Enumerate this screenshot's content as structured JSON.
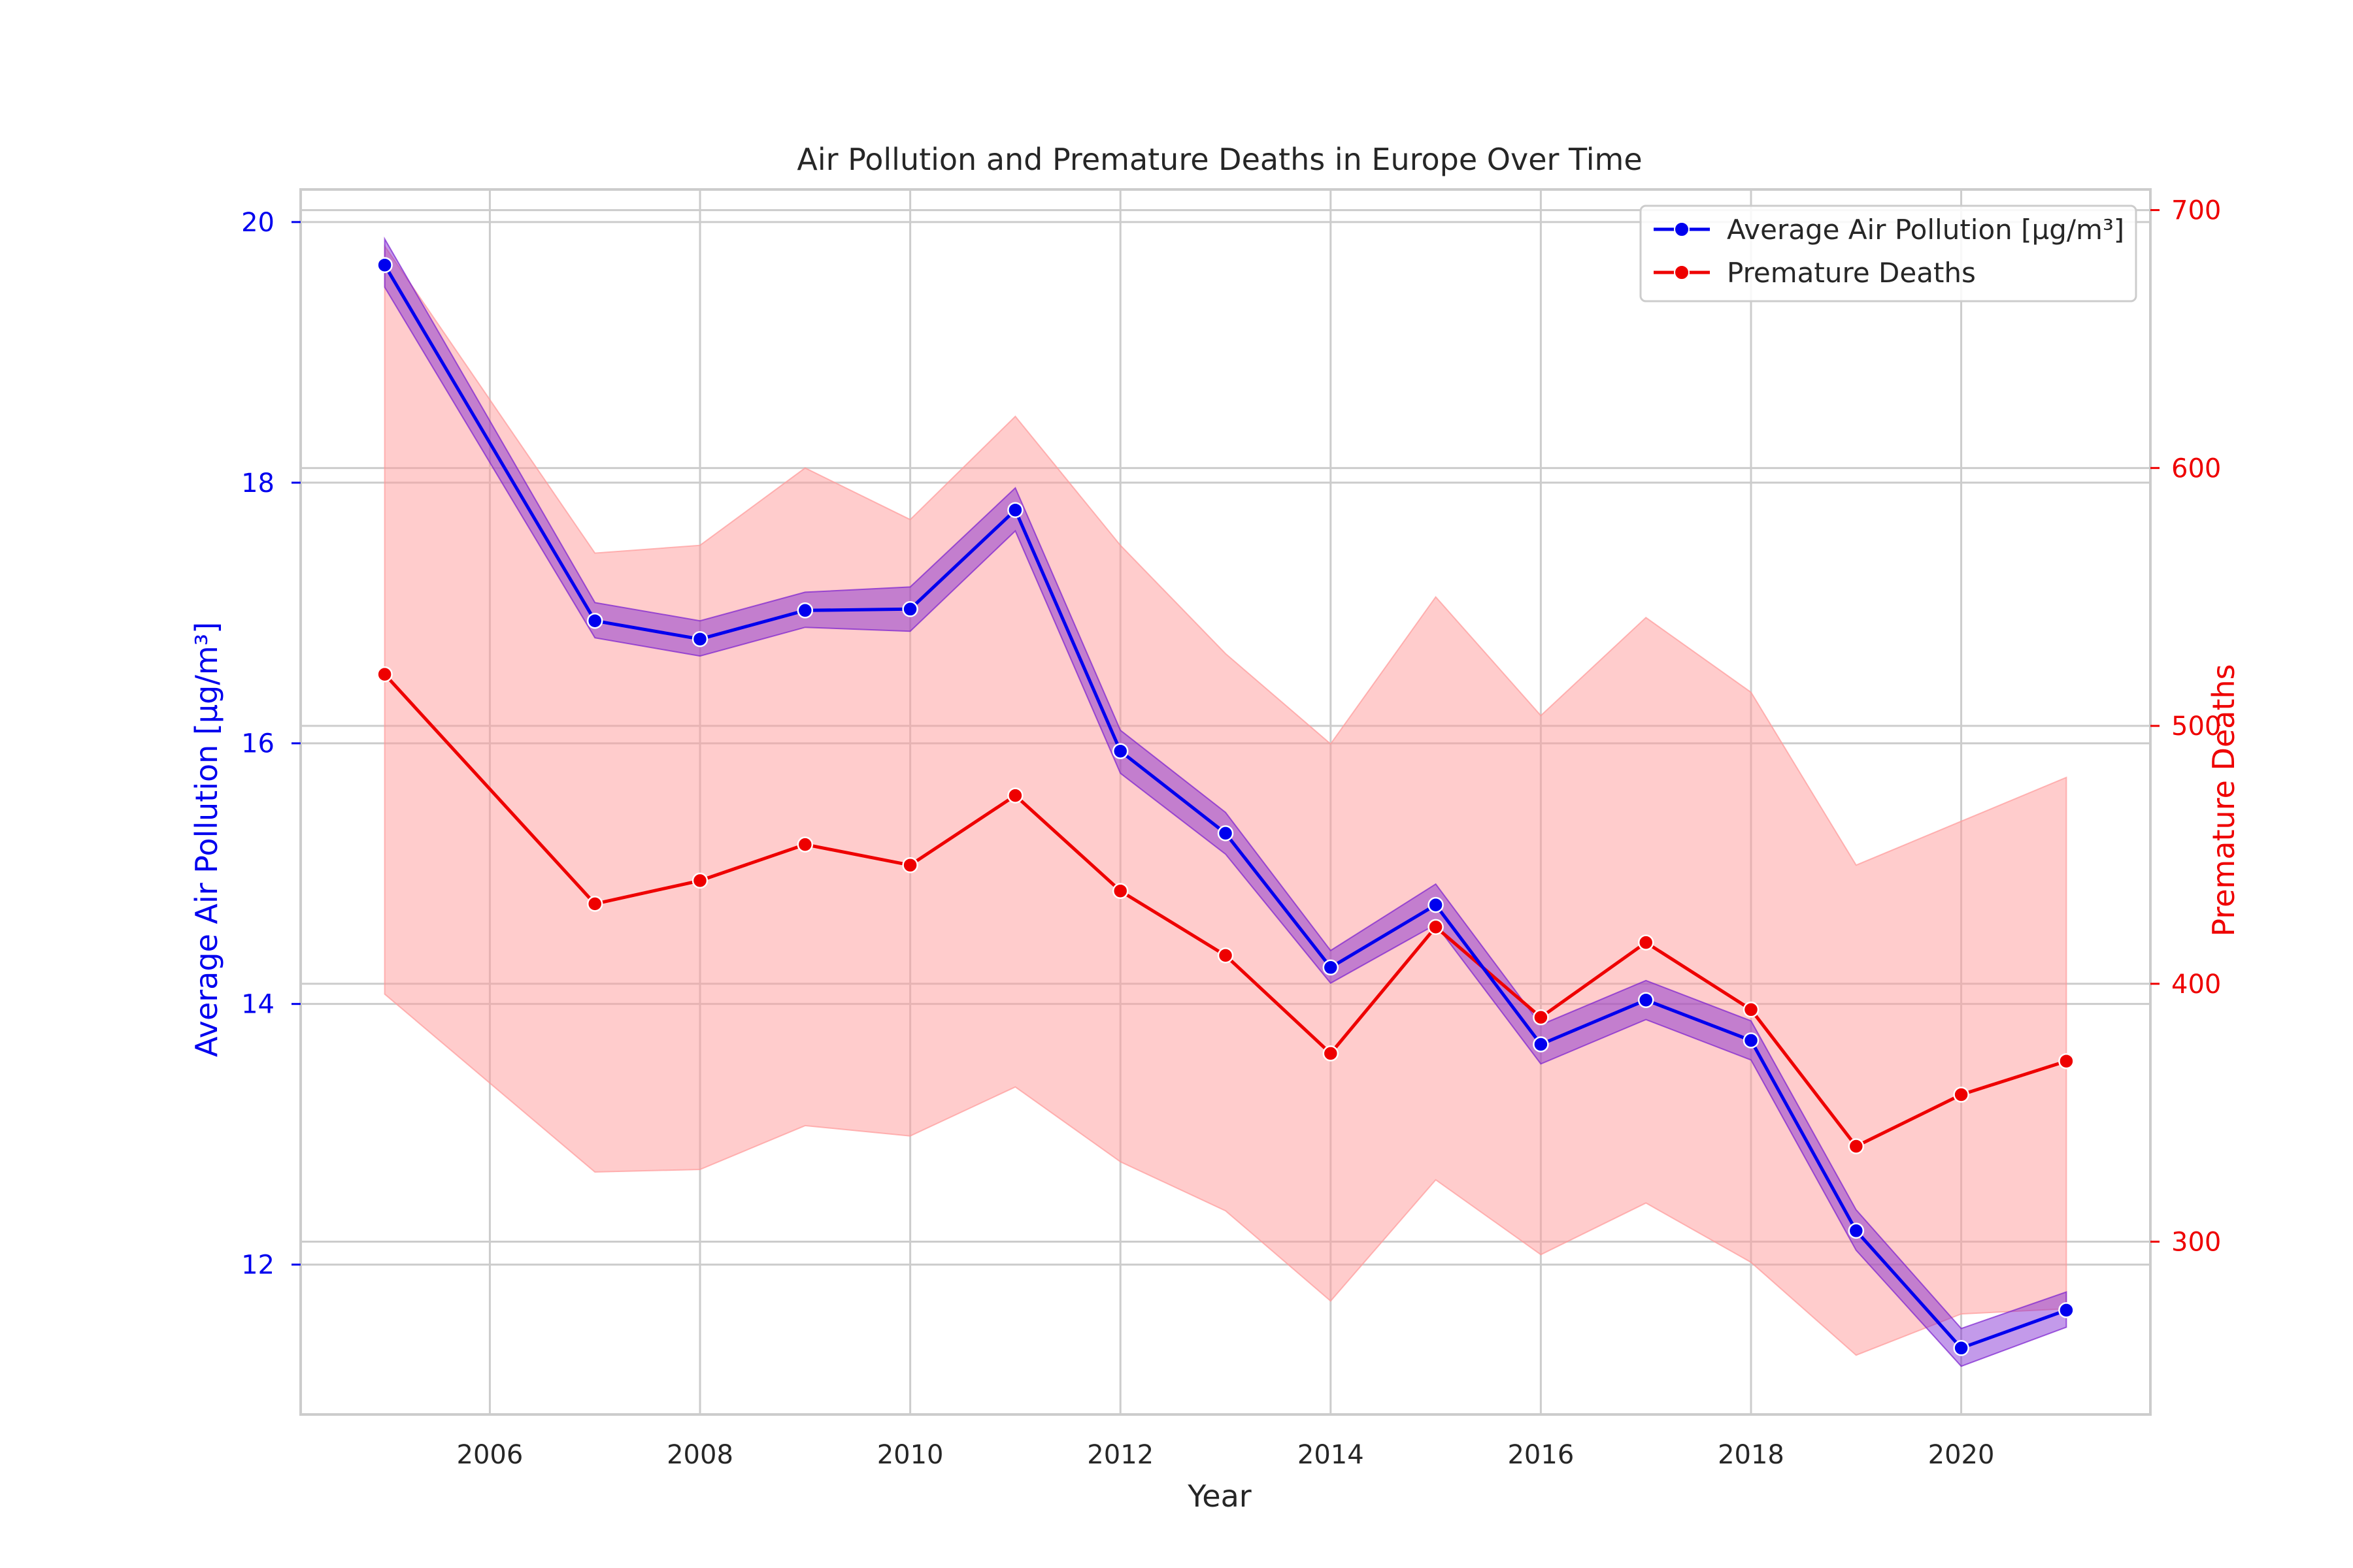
{
  "chart_data": {
    "type": "line",
    "title": "Air Pollution and Premature Deaths in Europe Over Time",
    "xlabel": "Year",
    "ylabel_left": "Average Air Pollution [µg/m³]",
    "ylabel_right": "Premature Deaths",
    "x": [
      2005,
      2007,
      2008,
      2009,
      2010,
      2011,
      2012,
      2013,
      2014,
      2015,
      2016,
      2017,
      2018,
      2019,
      2020,
      2021
    ],
    "xlim": [
      2004.2,
      2021.8
    ],
    "xticks": [
      "2006",
      "2008",
      "2010",
      "2012",
      "2014",
      "2016",
      "2018",
      "2020"
    ],
    "ylim_left": [
      10.85,
      20.25
    ],
    "yticks_left": [
      "12",
      "14",
      "16",
      "18",
      "20"
    ],
    "ylim_right": [
      233,
      708
    ],
    "yticks_right": [
      "300",
      "400",
      "500",
      "600",
      "700"
    ],
    "grid": true,
    "legend_position": "top-right",
    "series": [
      {
        "name": "Average Air Pollution [µg/m³]",
        "axis": "left",
        "color": "#0000ee",
        "band_color": "#7a1fd0",
        "values": [
          19.67,
          16.94,
          16.8,
          17.02,
          17.03,
          17.79,
          15.94,
          15.31,
          14.28,
          14.76,
          13.69,
          14.03,
          13.72,
          12.26,
          11.36,
          11.65
        ],
        "ci_lower": [
          19.5,
          16.81,
          16.67,
          16.89,
          16.86,
          17.63,
          15.77,
          15.15,
          14.16,
          14.61,
          13.54,
          13.88,
          13.57,
          12.11,
          11.22,
          11.52
        ],
        "ci_upper": [
          19.87,
          17.08,
          16.94,
          17.16,
          17.2,
          17.96,
          16.1,
          15.47,
          14.41,
          14.92,
          13.84,
          14.18,
          13.87,
          12.42,
          11.51,
          11.79
        ]
      },
      {
        "name": "Premature Deaths",
        "axis": "right",
        "color": "#ee0000",
        "band_color": "#ff9999",
        "values": [
          520,
          431,
          440,
          454,
          446,
          473,
          436,
          411,
          373,
          422,
          387,
          416,
          390,
          337,
          357,
          370
        ],
        "ci_lower": [
          396,
          327,
          328,
          345,
          341,
          360,
          331,
          312,
          277,
          324,
          295,
          315,
          292,
          256,
          272,
          274
        ],
        "ci_upper": [
          686,
          567,
          570,
          600,
          580,
          620,
          570,
          528,
          493,
          550,
          504,
          542,
          513,
          446,
          463,
          480
        ]
      }
    ]
  }
}
